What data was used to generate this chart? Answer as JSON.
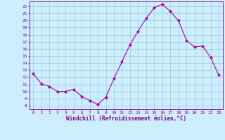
{
  "x": [
    0,
    1,
    2,
    3,
    4,
    5,
    6,
    7,
    8,
    9,
    10,
    11,
    12,
    13,
    14,
    15,
    16,
    17,
    18,
    19,
    20,
    21,
    22,
    23
  ],
  "y": [
    12.5,
    11.1,
    10.7,
    10.0,
    10.0,
    10.3,
    9.3,
    8.7,
    8.2,
    9.2,
    11.8,
    14.2,
    16.6,
    18.5,
    20.3,
    21.8,
    22.3,
    21.3,
    20.0,
    17.2,
    16.3,
    16.4,
    14.8,
    12.3
  ],
  "line_color": "#aa00aa",
  "marker": "D",
  "marker_size": 2,
  "bg_color": "#cceeff",
  "grid_color": "#99cccc",
  "xlabel": "Windchill (Refroidissement éolien,°C)",
  "ylabel": "",
  "xlim": [
    -0.5,
    23.5
  ],
  "ylim": [
    7.5,
    22.7
  ],
  "yticks": [
    8,
    9,
    10,
    11,
    12,
    13,
    14,
    15,
    16,
    17,
    18,
    19,
    20,
    21,
    22
  ],
  "xticks": [
    0,
    1,
    2,
    3,
    4,
    5,
    6,
    7,
    8,
    9,
    10,
    11,
    12,
    13,
    14,
    15,
    16,
    17,
    18,
    19,
    20,
    21,
    22,
    23
  ],
  "tick_color": "#880088",
  "spine_color": "#880088",
  "label_color": "#880088",
  "figsize": [
    3.2,
    2.0
  ],
  "dpi": 100
}
